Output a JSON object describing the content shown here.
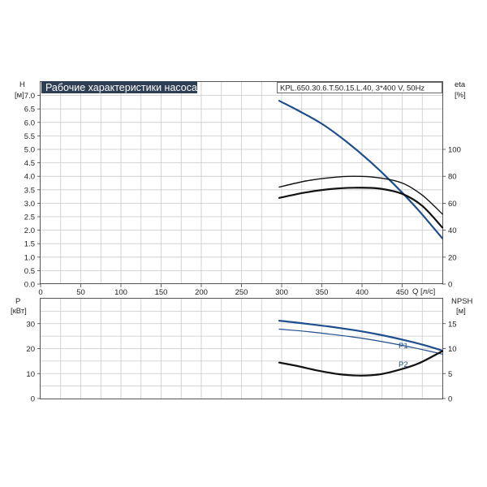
{
  "title": "Рабочие характеристики насоса",
  "model": "KPL.650.30.6.T.50.15.L.40, 3*400 V, 50Hz",
  "colors": {
    "blue": "#1f4e8c",
    "black": "#111111",
    "grid": "#c9c9c9",
    "title_bg": "#2e3f55"
  },
  "chart_data": [
    {
      "type": "line",
      "xlabel": "Q [л/с]",
      "ylabel": "H",
      "ylabel_unit": "[м]",
      "y2label": "eta",
      "y2label_unit": "[%]",
      "xlim": [
        0,
        500
      ],
      "ylim": [
        0,
        7.5
      ],
      "y2lim": [
        0,
        150
      ],
      "grid": true,
      "x_ticks": [
        0,
        50,
        100,
        150,
        200,
        250,
        300,
        350,
        400,
        450
      ],
      "x_tick_labels": [
        "0",
        "50",
        "100",
        "150",
        "200",
        "250",
        "300",
        "350",
        "400",
        "450"
      ],
      "y_ticks": [
        0,
        0.5,
        1,
        1.5,
        2,
        2.5,
        3,
        3.5,
        4,
        4.5,
        5,
        5.5,
        6,
        6.5,
        7
      ],
      "y_tick_labels": [
        "0.0",
        "0.5",
        "1.0",
        "1.5",
        "2.0",
        "2.5",
        "3.0",
        "3.5",
        "4.0",
        "4.5",
        "5.0",
        "5.5",
        "6.0",
        "6.5",
        "7.0"
      ],
      "y2_ticks": [
        0,
        20,
        40,
        60,
        80,
        100
      ],
      "y2_tick_labels": [
        "0",
        "20",
        "40",
        "60",
        "80",
        "100"
      ],
      "series": [
        {
          "axis": "y",
          "color": "#1f4e8c",
          "width": 2.2,
          "x": [
            297,
            320,
            350,
            380,
            410,
            440,
            470,
            500
          ],
          "y": [
            6.8,
            6.45,
            5.95,
            5.3,
            4.55,
            3.7,
            2.75,
            1.7
          ]
        },
        {
          "axis": "y2",
          "color": "#111111",
          "width": 1.4,
          "x": [
            297,
            330,
            360,
            390,
            420,
            450,
            475,
            500
          ],
          "y": [
            72,
            76.5,
            79,
            80,
            79,
            75,
            66,
            52
          ]
        },
        {
          "axis": "y2",
          "color": "#111111",
          "width": 2.2,
          "x": [
            297,
            330,
            360,
            390,
            420,
            450,
            475,
            500
          ],
          "y": [
            64,
            68,
            70.5,
            71.5,
            71,
            67,
            58,
            42
          ]
        }
      ]
    },
    {
      "type": "line",
      "xlabel": "",
      "ylabel": "P",
      "ylabel_unit": "[кВт]",
      "y2label": "NPSH",
      "y2label_unit": "[м]",
      "xlim": [
        0,
        500
      ],
      "ylim": [
        0,
        40
      ],
      "y2lim": [
        0,
        20
      ],
      "grid": true,
      "y_ticks": [
        0,
        10,
        20,
        30
      ],
      "y_tick_labels": [
        "0",
        "10",
        "20",
        "30"
      ],
      "y2_ticks": [
        0,
        5,
        10,
        15
      ],
      "y2_tick_labels": [
        "0",
        "5",
        "10",
        "15"
      ],
      "series": [
        {
          "name": "P1",
          "axis": "y",
          "color": "#1f4e8c",
          "width": 2.2,
          "x": [
            297,
            330,
            360,
            390,
            420,
            450,
            475,
            500
          ],
          "y": [
            31.2,
            30.0,
            28.8,
            27.4,
            25.7,
            23.6,
            21.6,
            19.2
          ]
        },
        {
          "name": "P2",
          "axis": "y",
          "color": "#1f4e8c",
          "width": 1.2,
          "x": [
            297,
            330,
            360,
            390,
            420,
            450,
            475,
            500
          ],
          "y": [
            27.8,
            26.9,
            25.8,
            24.6,
            23.1,
            21.3,
            19.6,
            17.8
          ]
        },
        {
          "axis": "y2",
          "color": "#111111",
          "width": 2.2,
          "x": [
            297,
            320,
            345,
            370,
            395,
            420,
            445,
            470,
            500
          ],
          "y": [
            7.2,
            6.5,
            5.6,
            4.9,
            4.6,
            4.8,
            5.7,
            7.0,
            9.5
          ]
        }
      ]
    }
  ]
}
